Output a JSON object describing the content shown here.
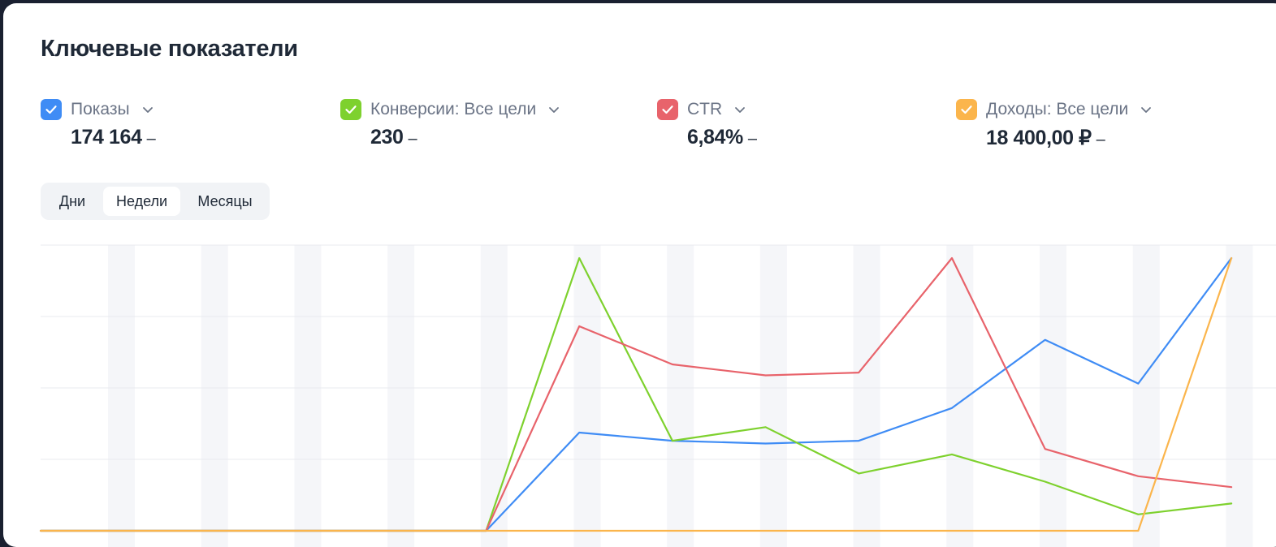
{
  "page_title": "Ключевые показатели",
  "metrics": [
    {
      "label": "Показы",
      "value": "174 164",
      "dash": "–",
      "color": "#3f8cf5",
      "checked": true,
      "icon": "chevron-down-icon"
    },
    {
      "label": "Конверсии: Все цели",
      "value": "230",
      "dash": "–",
      "color": "#7ed12e",
      "checked": true,
      "icon": "chevron-down-icon"
    },
    {
      "label": "CTR",
      "value": "6,84%",
      "dash": "–",
      "color": "#e8636b",
      "checked": true,
      "icon": "chevron-down-icon"
    },
    {
      "label": "Доходы: Все цели",
      "value": "18 400,00 ₽",
      "dash": "–",
      "color": "#fbb54c",
      "checked": true,
      "icon": "chevron-down-icon"
    }
  ],
  "period_switch": {
    "options": [
      "Дни",
      "Недели",
      "Месяцы"
    ],
    "selected": "Недели"
  },
  "chart_data": {
    "type": "line",
    "grid": true,
    "x_count": 14,
    "series": [
      {
        "name": "Показы",
        "color": "#3f8cf5",
        "values": [
          0,
          0,
          0,
          0,
          0,
          0,
          0.36,
          0.33,
          0.32,
          0.33,
          0.45,
          0.7,
          0.54,
          1.0
        ]
      },
      {
        "name": "Конверсии: Все цели",
        "color": "#7ed12e",
        "values": [
          0,
          0,
          0,
          0,
          0,
          0,
          1.0,
          0.33,
          0.38,
          0.21,
          0.28,
          0.18,
          0.06,
          0.1
        ]
      },
      {
        "name": "CTR",
        "color": "#e8636b",
        "values": [
          0,
          0,
          0,
          0,
          0,
          0,
          0.75,
          0.61,
          0.57,
          0.58,
          1.0,
          0.3,
          0.2,
          0.16
        ]
      },
      {
        "name": "Доходы: Все цели",
        "color": "#fbb54c",
        "values": [
          0,
          0,
          0,
          0,
          0,
          0,
          0,
          0,
          0,
          0,
          0,
          0,
          0,
          1.0
        ]
      }
    ]
  }
}
